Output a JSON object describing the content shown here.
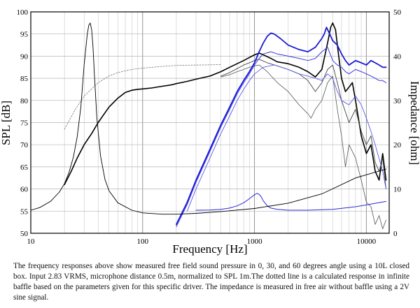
{
  "chart_data": {
    "type": "line",
    "xlabel": "Frequency [Hz]",
    "ylabel": "SPL [dB]",
    "y2label": "Impedance [ohm]",
    "xscale": "log",
    "xlim": [
      10,
      16000
    ],
    "ylim": [
      50,
      100
    ],
    "y2lim": [
      0,
      50
    ],
    "x_ticks": [
      {
        "value": 10,
        "label": "10"
      },
      {
        "value": 100,
        "label": "100"
      },
      {
        "value": 1000,
        "label": "1000"
      },
      {
        "value": 10000,
        "label": "10000"
      }
    ],
    "y_ticks": [
      50,
      55,
      60,
      65,
      70,
      75,
      80,
      85,
      90,
      95,
      100
    ],
    "y2_ticks": [
      0,
      10,
      20,
      30,
      40,
      50
    ],
    "grid": true,
    "series": [
      {
        "color": "#000000",
        "width": 1.6,
        "dash": "",
        "axis": "left",
        "x": [
          20,
          23,
          26,
          30,
          35,
          40,
          50,
          60,
          70,
          80,
          90,
          100,
          120,
          150,
          180,
          200,
          250,
          300,
          400,
          500,
          600,
          700,
          800,
          900,
          1000,
          1100,
          1200,
          1400,
          1600,
          2000,
          2500,
          3000,
          3500,
          4000,
          4500,
          4800,
          5000,
          5300,
          5600,
          6000,
          6500,
          7000,
          7500,
          8000,
          9000,
          10000,
          11000,
          12000,
          13000,
          14000,
          15000
        ],
        "y": [
          61,
          64,
          67,
          70,
          72.5,
          75,
          78.5,
          80.5,
          81.8,
          82.3,
          82.5,
          82.6,
          82.8,
          83.2,
          83.5,
          83.8,
          84.3,
          84.8,
          85.5,
          86.5,
          87.5,
          88.3,
          89,
          89.7,
          90.3,
          90.7,
          90.3,
          89.5,
          88.7,
          88.3,
          87.5,
          86.5,
          85.3,
          87,
          93,
          96.5,
          97.5,
          96,
          91,
          85,
          82,
          83,
          84,
          80,
          72,
          68,
          70,
          64,
          62,
          68,
          62
        ]
      },
      {
        "color": "#444444",
        "width": 0.9,
        "dash": "",
        "axis": "left",
        "x": [
          500,
          600,
          700,
          800,
          900,
          1000,
          1100,
          1300,
          1600,
          2000,
          2500,
          3000,
          3500,
          4000,
          4500,
          5000,
          5500,
          6000,
          7000,
          8000,
          9000,
          10000,
          11000,
          12000,
          13000,
          14000,
          15000
        ],
        "y": [
          85.5,
          86.3,
          87.2,
          88,
          88.5,
          89,
          89.3,
          88.5,
          87.8,
          87,
          86,
          84.5,
          82,
          84,
          87,
          88,
          84,
          80,
          75,
          78,
          73,
          70,
          72,
          66,
          64,
          67,
          60
        ]
      },
      {
        "color": "#555555",
        "width": 0.8,
        "dash": "",
        "axis": "left",
        "x": [
          500,
          600,
          700,
          800,
          900,
          1000,
          1100,
          1300,
          1600,
          2000,
          2500,
          3000,
          3200,
          3500,
          4000,
          4500,
          5000,
          5500,
          6000,
          6500,
          7000,
          8000,
          9000,
          10000,
          11000,
          12000,
          13000,
          14000,
          15000
        ],
        "y": [
          85.3,
          85.8,
          86.5,
          87,
          87.5,
          87.8,
          88,
          86.5,
          84,
          82,
          79,
          77,
          76,
          78,
          80,
          84,
          85.5,
          78,
          72,
          65,
          70,
          67,
          62,
          57,
          56,
          52,
          54,
          51,
          53
        ]
      },
      {
        "color": "#888888",
        "width": 0.9,
        "dash": "2,2",
        "axis": "left",
        "x": [
          20,
          25,
          30,
          40,
          50,
          60,
          80,
          100,
          150,
          200,
          300,
          400,
          500
        ],
        "y": [
          73.5,
          78,
          81,
          84,
          85.5,
          86.3,
          87,
          87.3,
          87.7,
          87.9,
          88,
          88.05,
          88.1
        ]
      },
      {
        "color": "#1a1ad6",
        "width": 1.8,
        "dash": "",
        "axis": "left",
        "x": [
          200,
          250,
          300,
          400,
          500,
          600,
          700,
          800,
          900,
          1000,
          1100,
          1200,
          1300,
          1400,
          1500,
          1700,
          2000,
          2500,
          3000,
          3500,
          4000,
          4200,
          4400,
          4600,
          5000,
          5500,
          6000,
          6500,
          7000,
          8000,
          9000,
          10000,
          11000,
          12000,
          13000,
          14000,
          15000
        ],
        "y": [
          52,
          57,
          62,
          69,
          74.5,
          78.5,
          82,
          84.5,
          86.5,
          88.5,
          91,
          93,
          94.5,
          95.2,
          95,
          94,
          92.5,
          91.5,
          91,
          92,
          94,
          95,
          96.5,
          95.5,
          93.5,
          92.5,
          90.5,
          89,
          88,
          89,
          88.5,
          88,
          89,
          88.5,
          88,
          87.5,
          87.5
        ]
      },
      {
        "color": "#3a3ae0",
        "width": 1.0,
        "dash": "",
        "axis": "left",
        "x": [
          200,
          250,
          300,
          400,
          500,
          600,
          700,
          800,
          900,
          1000,
          1100,
          1200,
          1400,
          1600,
          2000,
          2500,
          3000,
          3500,
          4000,
          4500,
          5000,
          5500,
          6000,
          6500,
          7000,
          8000,
          9000,
          10000,
          11000,
          12000,
          13000,
          14000,
          15000
        ],
        "y": [
          51.5,
          56.5,
          61.5,
          68.5,
          74,
          78,
          81.5,
          84,
          86,
          88,
          89.5,
          90.5,
          91,
          90.5,
          90,
          89.5,
          89,
          89.5,
          91,
          92,
          89,
          88,
          87.5,
          86.5,
          86,
          87,
          86.5,
          86,
          85.5,
          85,
          84.5,
          84.5,
          84
        ]
      },
      {
        "color": "#5a5ae8",
        "width": 0.9,
        "dash": "",
        "axis": "left",
        "x": [
          250,
          300,
          400,
          500,
          600,
          700,
          800,
          900,
          1000,
          1200,
          1500,
          2000,
          2500,
          3000,
          3500,
          4000,
          4500,
          5000,
          5500,
          6000,
          7000,
          8000,
          9000,
          10000,
          11000,
          12000,
          14000,
          15000
        ],
        "y": [
          55,
          60,
          67,
          72.5,
          76.5,
          80,
          82.5,
          84.5,
          86,
          87.5,
          88,
          87,
          86,
          85.5,
          85,
          84.5,
          86,
          85,
          82,
          80,
          79,
          81,
          79,
          76,
          73,
          70,
          64,
          60
        ]
      },
      {
        "color": "#2a2ad8",
        "width": 1.0,
        "dash": "",
        "axis": "right",
        "x": [
          300,
          400,
          500,
          600,
          700,
          800,
          900,
          1000,
          1050,
          1100,
          1150,
          1200,
          1300,
          1400,
          1600,
          2000,
          3000,
          5000,
          8000,
          10000,
          15000
        ],
        "y": [
          5.2,
          5.25,
          5.4,
          5.7,
          6.2,
          6.9,
          7.8,
          8.7,
          9.0,
          8.8,
          8.2,
          7.3,
          6.2,
          5.7,
          5.4,
          5.2,
          5.2,
          5.4,
          6.0,
          6.4,
          7.2
        ]
      },
      {
        "color": "#000000",
        "width": 0.9,
        "dash": "",
        "axis": "right",
        "x": [
          10,
          12,
          15,
          18,
          20,
          22,
          24,
          26,
          28,
          30,
          32,
          33,
          34,
          35,
          36,
          37,
          39,
          42,
          46,
          50,
          60,
          80,
          100,
          150,
          200,
          300,
          500,
          1000,
          2000,
          4000,
          8000,
          15000
        ],
        "y": [
          5.2,
          5.8,
          7.2,
          9.3,
          11.2,
          13.8,
          17.2,
          21.8,
          28.5,
          38,
          45,
          47,
          47.5,
          46,
          42,
          36,
          26,
          17.5,
          12.2,
          9.6,
          6.9,
          5.2,
          4.6,
          4.3,
          4.3,
          4.5,
          4.9,
          5.6,
          6.8,
          8.9,
          12.5,
          14.5
        ]
      }
    ]
  },
  "caption": {
    "text": "The frequency responses above show measured free field sound pressure in 0, 30, and 60 degrees angle using a 10L closed box. Input 2.83 VRMS, microphone distance 0.5m, normalized to SPL 1m.The dotted line is a calculated response in infinite baffle based on the parameters given for this specific driver. The impedance is measured in free air without baffle using a 2V sine signal."
  }
}
